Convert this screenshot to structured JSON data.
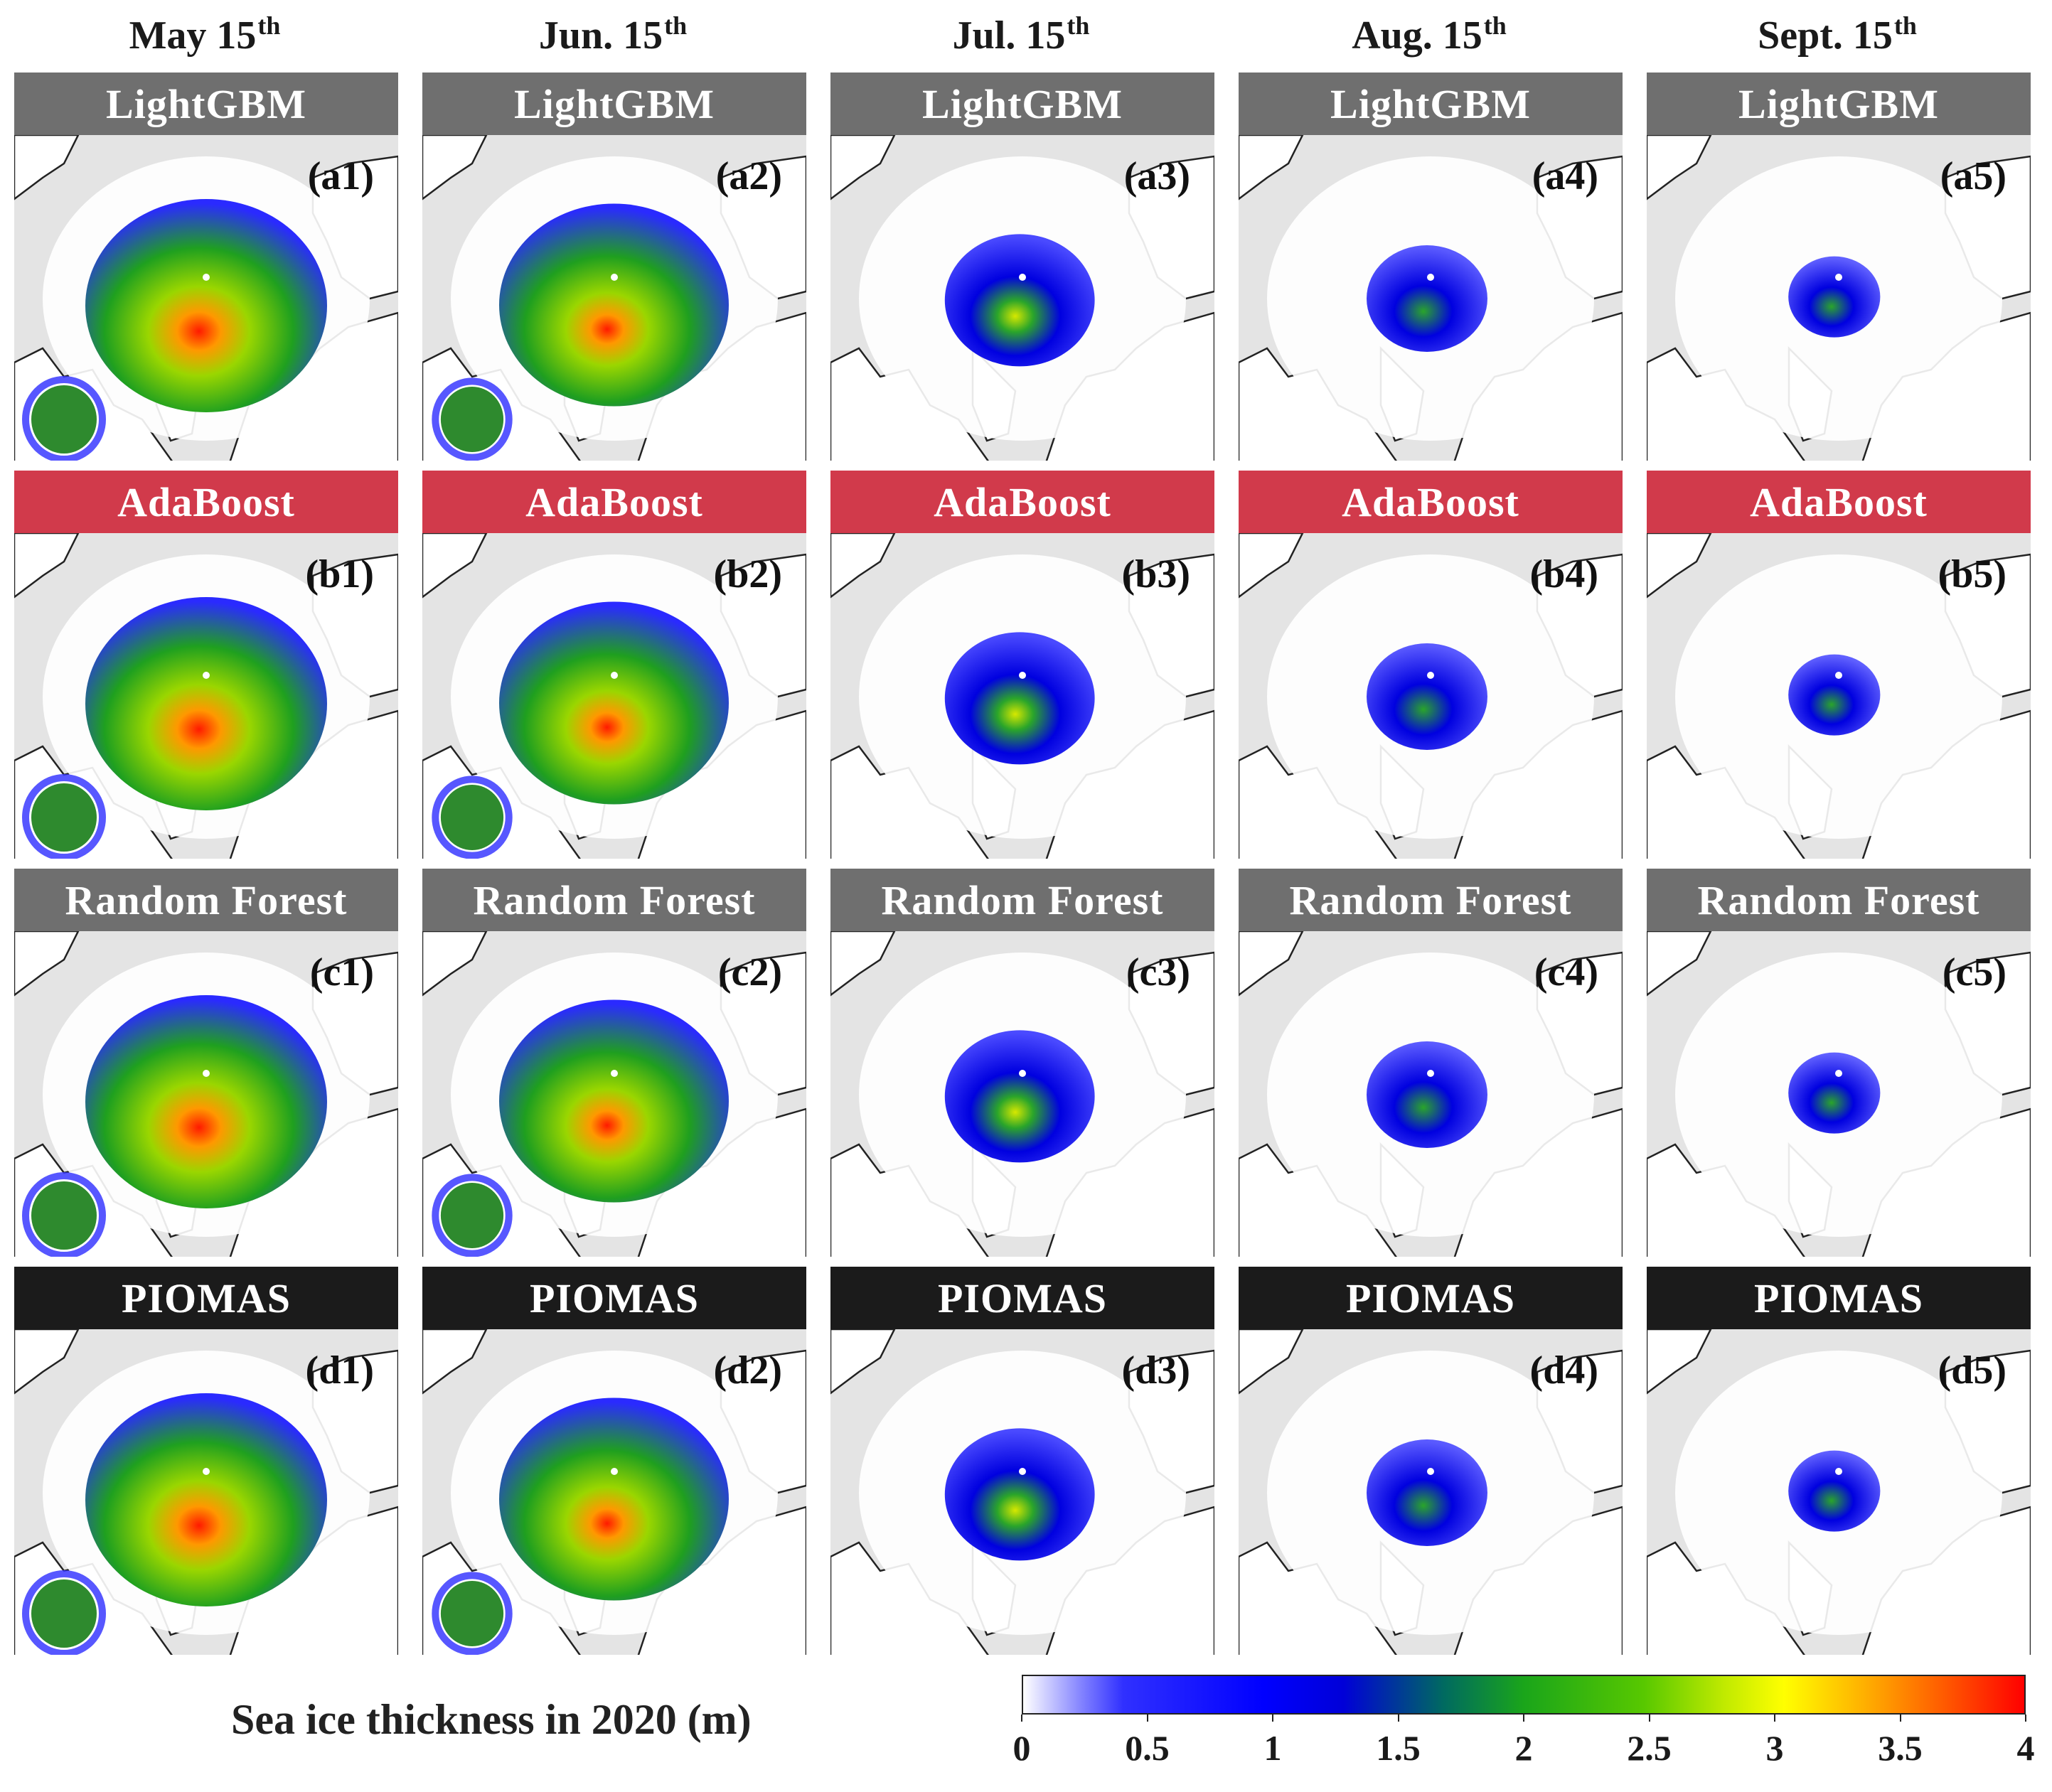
{
  "columns": [
    {
      "text": "May 15",
      "sup": "th"
    },
    {
      "text": "Jun. 15",
      "sup": "th"
    },
    {
      "text": "Jul. 15",
      "sup": "th"
    },
    {
      "text": "Aug. 15",
      "sup": "th"
    },
    {
      "text": "Sept. 15",
      "sup": "th"
    }
  ],
  "rows": [
    {
      "model": "LightGBM",
      "color": "#6f6f6f",
      "labels": [
        "(a1)",
        "(a2)",
        "(a3)",
        "(a4)",
        "(a5)"
      ]
    },
    {
      "model": "AdaBoost",
      "color": "#d13a4b",
      "labels": [
        "(b1)",
        "(b2)",
        "(b3)",
        "(b4)",
        "(b5)"
      ]
    },
    {
      "model": "Random Forest",
      "color": "#6f6f6f",
      "labels": [
        "(c1)",
        "(c2)",
        "(c3)",
        "(c4)",
        "(c5)"
      ]
    },
    {
      "model": "PIOMAS",
      "color": "#1b1b1b",
      "labels": [
        "(d1)",
        "(d2)",
        "(d3)",
        "(d4)",
        "(d5)"
      ]
    }
  ],
  "colorbar": {
    "title": "Sea ice thickness in 2020 (m)",
    "ticks": [
      "0",
      "0.5",
      "1",
      "1.5",
      "2",
      "2.5",
      "3",
      "3.5",
      "4"
    ],
    "range": [
      0,
      4
    ]
  }
}
